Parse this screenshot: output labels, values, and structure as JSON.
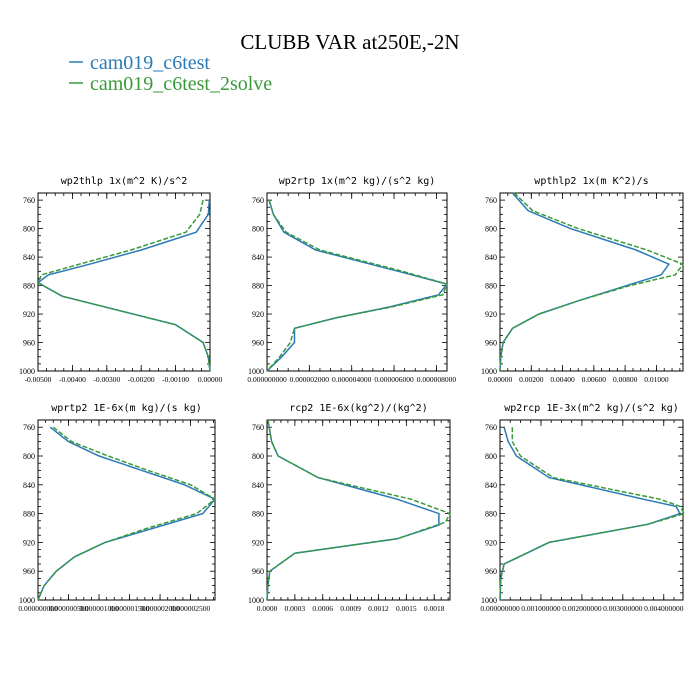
{
  "figure": {
    "title": "CLUBB VAR at250E,-2N",
    "legend": [
      {
        "label": "cam019_c6test",
        "color": "#2a7ab6"
      },
      {
        "label": "cam019_c6test_2solve",
        "color": "#3a9a3a"
      }
    ]
  },
  "chart_data": [
    {
      "type": "line",
      "title": "wp2thlp  1x(m^2 K)/s^2",
      "xlim": [
        -0.005,
        0.0
      ],
      "ylim": [
        1000,
        750
      ],
      "y_ticks": [
        "760",
        "800",
        "840",
        "880",
        "920",
        "960",
        "1000"
      ],
      "x_ticks": [
        "-0.00500",
        "-0.00400",
        "-0.00300",
        "-0.00200",
        "-0.00100",
        "0.00000"
      ],
      "x_tick_values": [
        -0.005,
        -0.004,
        -0.003,
        -0.002,
        -0.001,
        0.0
      ],
      "series": [
        {
          "name": "cam019_c6test",
          "y": [
            760,
            780,
            805,
            830,
            850,
            865,
            876,
            895,
            935,
            960,
            980,
            1000
          ],
          "x": [
            -2e-05,
            -5e-05,
            -0.0004,
            -0.002,
            -0.0035,
            -0.0047,
            -0.005,
            -0.0043,
            -0.001,
            -0.0002,
            -5e-05,
            0.0
          ]
        },
        {
          "name": "cam019_c6test_2solve",
          "y": [
            760,
            780,
            805,
            830,
            850,
            865,
            876,
            895,
            935,
            960,
            980,
            1000
          ],
          "x": [
            -0.0002,
            -0.0003,
            -0.0007,
            -0.0023,
            -0.0038,
            -0.0049,
            -0.005,
            -0.0043,
            -0.001,
            -0.0002,
            -5e-05,
            0.0
          ]
        }
      ]
    },
    {
      "type": "line",
      "title": "wp2rtp  1x(m^2 kg)/(s^2 kg)",
      "xlim": [
        0.0,
        8.5e-06
      ],
      "ylim": [
        1000,
        750
      ],
      "y_ticks": [
        "760",
        "800",
        "840",
        "880",
        "920",
        "960",
        "1000"
      ],
      "x_ticks": [
        "0.000000000",
        "0.000002000",
        "0.000004000",
        "0.000006000",
        "0.000008000"
      ],
      "x_tick_values": [
        0.0,
        2e-06,
        4e-06,
        6e-06,
        8e-06
      ],
      "series": [
        {
          "name": "cam019_c6test",
          "y": [
            760,
            780,
            805,
            830,
            860,
            878,
            893,
            910,
            925,
            940,
            960,
            980,
            1000
          ],
          "x": [
            1e-07,
            3e-07,
            8e-07,
            2.3e-06,
            6.2e-06,
            8.5e-06,
            8.1e-06,
            5.8e-06,
            3.3e-06,
            1.3e-06,
            1.3e-06,
            7e-07,
            0.0
          ]
        },
        {
          "name": "cam019_c6test_2solve",
          "y": [
            760,
            780,
            805,
            830,
            860,
            878,
            893,
            910,
            925,
            940,
            960,
            980,
            1000
          ],
          "x": [
            1e-07,
            3e-07,
            9e-07,
            2.5e-06,
            6.4e-06,
            8.5e-06,
            8.3e-06,
            5.9e-06,
            3.3e-06,
            1.3e-06,
            1.1e-06,
            6e-07,
            0.0
          ]
        }
      ]
    },
    {
      "type": "line",
      "title": "wpthlp2  1x(m K^2)/s",
      "xlim": [
        0.0,
        0.0117
      ],
      "ylim": [
        1000,
        750
      ],
      "y_ticks": [
        "760",
        "800",
        "840",
        "880",
        "920",
        "960",
        "1000"
      ],
      "x_ticks": [
        "0.00000",
        "0.00200",
        "0.00400",
        "0.00600",
        "0.00800",
        "0.01000"
      ],
      "x_tick_values": [
        0.0,
        0.002,
        0.004,
        0.006,
        0.008,
        0.01
      ],
      "series": [
        {
          "name": "cam019_c6test",
          "y": [
            750,
            775,
            800,
            830,
            850,
            865,
            880,
            900,
            920,
            940,
            960,
            980,
            1000
          ],
          "x": [
            0.0008,
            0.0018,
            0.0045,
            0.0087,
            0.0108,
            0.0103,
            0.0081,
            0.0052,
            0.0025,
            0.0008,
            0.0002,
            5e-05,
            0.0
          ]
        },
        {
          "name": "cam019_c6test_2solve",
          "y": [
            750,
            775,
            800,
            830,
            850,
            865,
            880,
            900,
            920,
            940,
            960,
            980,
            1000
          ],
          "x": [
            0.0009,
            0.0021,
            0.005,
            0.0094,
            0.0117,
            0.0112,
            0.0083,
            0.0052,
            0.0025,
            0.0008,
            0.0002,
            5e-05,
            0.0
          ]
        }
      ]
    },
    {
      "type": "line",
      "title": "wprtp2  1E-6x(m kg)/(s kg)",
      "xlim": [
        0.0,
        2.9e-06
      ],
      "ylim": [
        1000,
        750
      ],
      "y_ticks": [
        "760",
        "800",
        "840",
        "880",
        "920",
        "960",
        "1000"
      ],
      "x_ticks": [
        "0.000000000",
        "0.000000500",
        "0.000001000",
        "0.000001500",
        "0.000002000",
        "0.000002500"
      ],
      "x_tick_values": [
        0.0,
        5e-07,
        1e-06,
        1.5e-06,
        2e-06,
        2.5e-06
      ],
      "series": [
        {
          "name": "cam019_c6test",
          "y": [
            760,
            780,
            800,
            820,
            840,
            860,
            880,
            900,
            920,
            940,
            960,
            980,
            1000
          ],
          "x": [
            2e-07,
            5e-07,
            1e-06,
            1.7e-06,
            2.4e-06,
            2.9e-06,
            2.7e-06,
            1.9e-06,
            1.1e-06,
            6e-07,
            3e-07,
            1e-07,
            0.0
          ]
        },
        {
          "name": "cam019_c6test_2solve",
          "y": [
            760,
            780,
            800,
            820,
            840,
            860,
            880,
            900,
            920,
            940,
            960,
            980,
            1000
          ],
          "x": [
            2.5e-07,
            5.5e-07,
            1.15e-06,
            1.8e-06,
            2.5e-06,
            2.9e-06,
            2.6e-06,
            1.8e-06,
            1.1e-06,
            6e-07,
            3e-07,
            1e-07,
            0.0
          ]
        }
      ]
    },
    {
      "type": "line",
      "title": "rcp2  1E-6x(kg^2)/(kg^2)",
      "xlim": [
        0.0,
        0.00197
      ],
      "ylim": [
        1000,
        750
      ],
      "y_ticks": [
        "760",
        "800",
        "840",
        "880",
        "920",
        "960",
        "1000"
      ],
      "x_ticks": [
        "0.0000",
        "0.0003",
        "0.0006",
        "0.0009",
        "0.0012",
        "0.0015",
        "0.0018"
      ],
      "x_tick_values": [
        0.0,
        0.0003,
        0.0006,
        0.0009,
        0.0012,
        0.0015,
        0.0018
      ],
      "series": [
        {
          "name": "cam019_c6test",
          "y": [
            750,
            780,
            800,
            830,
            860,
            880,
            896,
            915,
            935,
            960,
            980,
            1000
          ],
          "x": [
            1e-05,
            5e-05,
            0.00012,
            0.00055,
            0.0014,
            0.00185,
            0.00185,
            0.0014,
            0.0003,
            3e-05,
            1e-05,
            0.0
          ]
        },
        {
          "name": "cam019_c6test_2solve",
          "y": [
            750,
            780,
            800,
            830,
            860,
            880,
            892,
            915,
            935,
            960,
            980,
            1000
          ],
          "x": [
            1e-05,
            5e-05,
            0.00012,
            0.00055,
            0.00155,
            0.00197,
            0.00192,
            0.0014,
            0.0003,
            3e-05,
            1e-05,
            0.0
          ]
        }
      ]
    },
    {
      "type": "line",
      "title": "wp2rcp  1E-3x(m^2 kg)/(s^2 kg)",
      "xlim": [
        0.0,
        0.00447
      ],
      "ylim": [
        1000,
        750
      ],
      "y_ticks": [
        "760",
        "800",
        "840",
        "880",
        "920",
        "960",
        "1000"
      ],
      "x_ticks": [
        "0.000000000",
        "0.001000000",
        "0.002000000",
        "0.003000000",
        "0.004000000"
      ],
      "x_tick_values": [
        0.0,
        0.001,
        0.002,
        0.003,
        0.004
      ],
      "series": [
        {
          "name": "cam019_c6test",
          "y": [
            760,
            780,
            800,
            830,
            860,
            870,
            880,
            895,
            920,
            950,
            970,
            1000
          ],
          "x": [
            0.0001,
            0.0002,
            0.0004,
            0.0012,
            0.0035,
            0.0043,
            0.0044,
            0.0036,
            0.0012,
            0.0001,
            2e-05,
            0.0
          ]
        },
        {
          "name": "cam019_c6test_2solve",
          "y": [
            760,
            780,
            800,
            830,
            860,
            870,
            880,
            895,
            920,
            950,
            970,
            1000
          ],
          "x": [
            0.0003,
            0.0003,
            0.0005,
            0.0013,
            0.0039,
            0.0044,
            0.0045,
            0.0036,
            0.0012,
            0.0001,
            2e-05,
            0.0
          ]
        }
      ]
    }
  ]
}
